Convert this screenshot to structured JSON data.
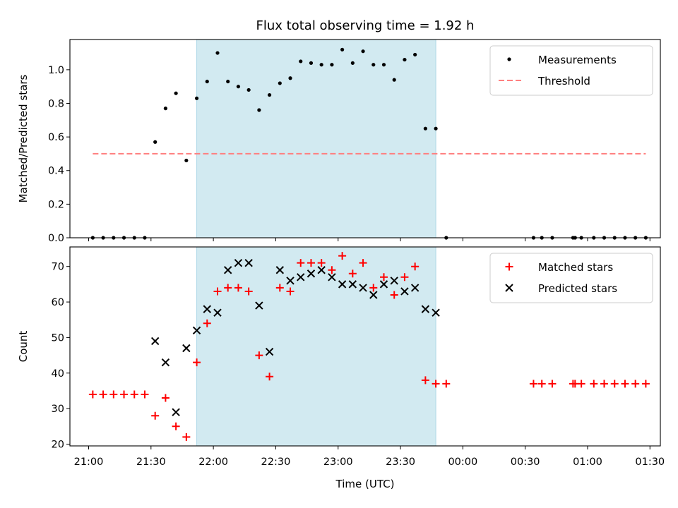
{
  "chart_data": {
    "title": "Flux total observing time = 1.92 h",
    "xlabel": "Time (UTC)",
    "x_axis": {
      "type": "time",
      "tick_labels": [
        "21:00",
        "21:30",
        "22:00",
        "22:30",
        "23:00",
        "23:30",
        "00:00",
        "00:30",
        "01:00",
        "01:30"
      ],
      "ticks": [
        "21:00",
        "21:30",
        "22:00",
        "22:30",
        "23:00",
        "23:30",
        "00:00",
        "00:30",
        "01:00",
        "01:30"
      ],
      "range": [
        "20:51",
        "01:35"
      ]
    },
    "observing_window": {
      "start": "21:52",
      "end": "23:47",
      "color": "#add8e6"
    },
    "panels": [
      {
        "type": "scatter",
        "ylabel": "Matched/Predicted stars",
        "ylim": [
          0,
          1.18
        ],
        "yticks": [
          0.0,
          0.2,
          0.4,
          0.6,
          0.8,
          1.0
        ],
        "ytick_labels": [
          "0.0",
          "0.2",
          "0.4",
          "0.6",
          "0.8",
          "1.0"
        ],
        "legend_position": "top-right",
        "series": [
          {
            "name": "Measurements",
            "marker": "dot",
            "color": "#000000",
            "points": [
              [
                "21:02",
                0.0
              ],
              [
                "21:07",
                0.0
              ],
              [
                "21:12",
                0.0
              ],
              [
                "21:17",
                0.0
              ],
              [
                "21:22",
                0.0
              ],
              [
                "21:27",
                0.0
              ],
              [
                "21:32",
                0.57
              ],
              [
                "21:37",
                0.77
              ],
              [
                "21:42",
                0.86
              ],
              [
                "21:47",
                0.46
              ],
              [
                "21:52",
                0.83
              ],
              [
                "21:57",
                0.93
              ],
              [
                "22:02",
                1.1
              ],
              [
                "22:07",
                0.93
              ],
              [
                "22:12",
                0.9
              ],
              [
                "22:17",
                0.88
              ],
              [
                "22:22",
                0.76
              ],
              [
                "22:27",
                0.85
              ],
              [
                "22:32",
                0.92
              ],
              [
                "22:37",
                0.95
              ],
              [
                "22:42",
                1.05
              ],
              [
                "22:47",
                1.04
              ],
              [
                "22:52",
                1.03
              ],
              [
                "22:57",
                1.03
              ],
              [
                "23:02",
                1.12
              ],
              [
                "23:07",
                1.04
              ],
              [
                "23:12",
                1.11
              ],
              [
                "23:17",
                1.03
              ],
              [
                "23:22",
                1.03
              ],
              [
                "23:27",
                0.94
              ],
              [
                "23:32",
                1.06
              ],
              [
                "23:37",
                1.09
              ],
              [
                "23:42",
                0.65
              ],
              [
                "23:47",
                0.65
              ],
              [
                "23:52",
                0.0
              ],
              [
                "00:34",
                0.0
              ],
              [
                "00:38",
                0.0
              ],
              [
                "00:43",
                0.0
              ],
              [
                "00:53",
                0.0
              ],
              [
                "00:54",
                0.0
              ],
              [
                "00:57",
                0.0
              ],
              [
                "01:03",
                0.0
              ],
              [
                "01:08",
                0.0
              ],
              [
                "01:13",
                0.0
              ],
              [
                "01:18",
                0.0
              ],
              [
                "01:23",
                0.0
              ],
              [
                "01:28",
                0.0
              ]
            ]
          },
          {
            "name": "Threshold",
            "type": "line",
            "style": "dashed",
            "color": "#ff7f7f",
            "points": [
              [
                "21:02",
                0.5
              ],
              [
                "01:28",
                0.5
              ]
            ]
          }
        ]
      },
      {
        "type": "scatter",
        "ylabel": "Count",
        "ylim": [
          19.5,
          75.5
        ],
        "yticks": [
          20,
          30,
          40,
          50,
          60,
          70
        ],
        "ytick_labels": [
          "20",
          "30",
          "40",
          "50",
          "60",
          "70"
        ],
        "legend_position": "top-right",
        "series": [
          {
            "name": "Matched stars",
            "marker": "plus",
            "color": "#ff0000",
            "points": [
              [
                "21:02",
                34
              ],
              [
                "21:07",
                34
              ],
              [
                "21:12",
                34
              ],
              [
                "21:17",
                34
              ],
              [
                "21:22",
                34
              ],
              [
                "21:27",
                34
              ],
              [
                "21:32",
                28
              ],
              [
                "21:37",
                33
              ],
              [
                "21:42",
                25
              ],
              [
                "21:47",
                22
              ],
              [
                "21:52",
                43
              ],
              [
                "21:57",
                54
              ],
              [
                "22:02",
                63
              ],
              [
                "22:07",
                64
              ],
              [
                "22:12",
                64
              ],
              [
                "22:17",
                63
              ],
              [
                "22:22",
                45
              ],
              [
                "22:27",
                39
              ],
              [
                "22:32",
                64
              ],
              [
                "22:37",
                63
              ],
              [
                "22:42",
                71
              ],
              [
                "22:47",
                71
              ],
              [
                "22:52",
                71
              ],
              [
                "22:57",
                69
              ],
              [
                "23:02",
                73
              ],
              [
                "23:07",
                68
              ],
              [
                "23:12",
                71
              ],
              [
                "23:17",
                64
              ],
              [
                "23:22",
                67
              ],
              [
                "23:27",
                62
              ],
              [
                "23:32",
                67
              ],
              [
                "23:37",
                70
              ],
              [
                "23:42",
                38
              ],
              [
                "23:47",
                37
              ],
              [
                "23:52",
                37
              ],
              [
                "00:34",
                37
              ],
              [
                "00:38",
                37
              ],
              [
                "00:43",
                37
              ],
              [
                "00:53",
                37
              ],
              [
                "00:54",
                37
              ],
              [
                "00:57",
                37
              ],
              [
                "01:03",
                37
              ],
              [
                "01:08",
                37
              ],
              [
                "01:13",
                37
              ],
              [
                "01:18",
                37
              ],
              [
                "01:23",
                37
              ],
              [
                "01:28",
                37
              ]
            ]
          },
          {
            "name": "Predicted stars",
            "marker": "x",
            "color": "#000000",
            "points": [
              [
                "21:32",
                49
              ],
              [
                "21:37",
                43
              ],
              [
                "21:42",
                29
              ],
              [
                "21:47",
                47
              ],
              [
                "21:52",
                52
              ],
              [
                "21:57",
                58
              ],
              [
                "22:02",
                57
              ],
              [
                "22:07",
                69
              ],
              [
                "22:12",
                71
              ],
              [
                "22:17",
                71
              ],
              [
                "22:22",
                59
              ],
              [
                "22:27",
                46
              ],
              [
                "22:32",
                69
              ],
              [
                "22:37",
                66
              ],
              [
                "22:42",
                67
              ],
              [
                "22:47",
                68
              ],
              [
                "22:52",
                69
              ],
              [
                "22:57",
                67
              ],
              [
                "23:02",
                65
              ],
              [
                "23:07",
                65
              ],
              [
                "23:12",
                64
              ],
              [
                "23:17",
                62
              ],
              [
                "23:22",
                65
              ],
              [
                "23:27",
                66
              ],
              [
                "23:32",
                63
              ],
              [
                "23:37",
                64
              ],
              [
                "23:42",
                58
              ],
              [
                "23:47",
                57
              ]
            ]
          }
        ]
      }
    ]
  }
}
